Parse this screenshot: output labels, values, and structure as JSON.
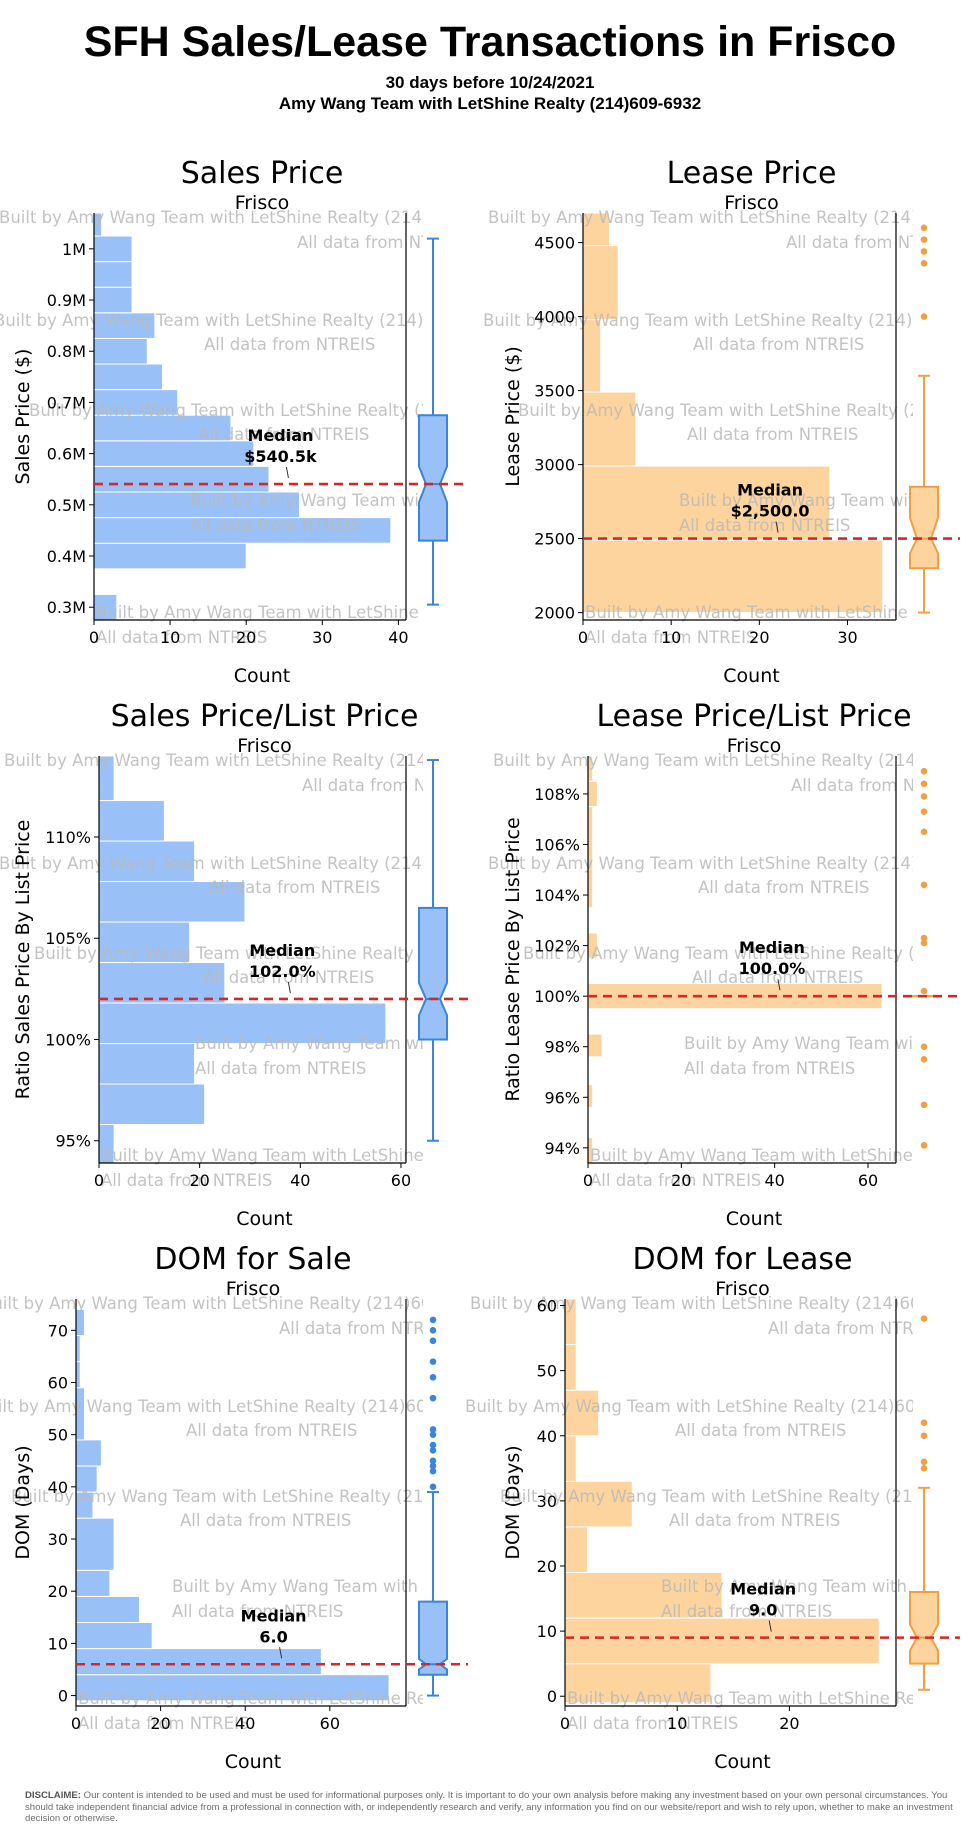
{
  "header": {
    "title": "SFH Sales/Lease Transactions in Frisco",
    "subtitle_date": "30 days before 10/24/2021",
    "subtitle_team": "Amy Wang Team with LetShine Realty (214)609-6932"
  },
  "watermark": {
    "line1": "Built by Amy Wang Team with LetShine Realty (214)609-6932",
    "line2": "All data from NTREIS"
  },
  "colors": {
    "sale_fill": "#99c1f7",
    "sale_line": "#3a84d9",
    "lease_fill": "#fdd49e",
    "lease_line": "#f0a040",
    "median_line": "#d62728"
  },
  "disclaimer": {
    "label": "DISCLAIME:",
    "text": "Our content is intended to be used and must be used for informational purposes only. It is important to do your own analysis before making any investment based on your own personal circumstances. You should take independent financial advice from a professional in connection with, or independently research and verify, any information you find on our website/report and wish to rely upon, whether to make an investment decision or otherwise."
  },
  "chart_data": [
    {
      "type": "bar",
      "orientation": "horizontal-histogram",
      "title": "Sales Price",
      "subtitle": "Frisco",
      "xlabel": "Count",
      "ylabel": "Sales Price ($)",
      "xlim": [
        0,
        41
      ],
      "ylim": [
        275000,
        1070000
      ],
      "xticks": [
        0,
        10,
        20,
        30,
        40
      ],
      "xtick_labels": [
        "0",
        "10",
        "20",
        "30",
        "40"
      ],
      "yticks": [
        300000,
        400000,
        500000,
        600000,
        700000,
        800000,
        900000,
        1000000
      ],
      "ytick_labels": [
        "0.3M",
        "0.4M",
        "0.5M",
        "0.6M",
        "0.7M",
        "0.8M",
        "0.9M",
        "1M"
      ],
      "bins": [
        {
          "lo": 275000,
          "hi": 325000,
          "count": 3
        },
        {
          "lo": 325000,
          "hi": 375000,
          "count": 0
        },
        {
          "lo": 375000,
          "hi": 425000,
          "count": 20
        },
        {
          "lo": 425000,
          "hi": 475000,
          "count": 39
        },
        {
          "lo": 475000,
          "hi": 525000,
          "count": 27
        },
        {
          "lo": 525000,
          "hi": 575000,
          "count": 23
        },
        {
          "lo": 575000,
          "hi": 625000,
          "count": 21
        },
        {
          "lo": 625000,
          "hi": 675000,
          "count": 18
        },
        {
          "lo": 675000,
          "hi": 725000,
          "count": 11
        },
        {
          "lo": 725000,
          "hi": 775000,
          "count": 9
        },
        {
          "lo": 775000,
          "hi": 825000,
          "count": 7
        },
        {
          "lo": 825000,
          "hi": 875000,
          "count": 8
        },
        {
          "lo": 875000,
          "hi": 925000,
          "count": 5
        },
        {
          "lo": 925000,
          "hi": 975000,
          "count": 5
        },
        {
          "lo": 975000,
          "hi": 1025000,
          "count": 5
        },
        {
          "lo": 1025000,
          "hi": 1070000,
          "count": 1
        }
      ],
      "median": 540500,
      "median_label": "Median",
      "median_text": "$540.5k",
      "box": {
        "wl": 305000,
        "q1": 430000,
        "med": 540500,
        "q3": 675000,
        "wh": 1020000,
        "notch_lo": 505000,
        "notch_hi": 575000
      },
      "outliers": [],
      "palette": "sale"
    },
    {
      "type": "bar",
      "orientation": "horizontal-histogram",
      "title": "Lease Price",
      "subtitle": "Frisco",
      "xlabel": "Count",
      "ylabel": "Lease Price ($)",
      "xlim": [
        0,
        35.5
      ],
      "ylim": [
        1950,
        4700
      ],
      "xticks": [
        0,
        10,
        20,
        30
      ],
      "xtick_labels": [
        "0",
        "10",
        "20",
        "30"
      ],
      "yticks": [
        2000,
        2500,
        3000,
        3500,
        4000,
        4500
      ],
      "ytick_labels": [
        "2000",
        "2500",
        "3000",
        "3500",
        "4000",
        "4500"
      ],
      "bins": [
        {
          "lo": 2000,
          "hi": 2490,
          "count": 34
        },
        {
          "lo": 2490,
          "hi": 2990,
          "count": 28
        },
        {
          "lo": 2990,
          "hi": 3490,
          "count": 6
        },
        {
          "lo": 3490,
          "hi": 3980,
          "count": 2
        },
        {
          "lo": 3980,
          "hi": 4480,
          "count": 4
        },
        {
          "lo": 4480,
          "hi": 4700,
          "count": 3
        }
      ],
      "median": 2500,
      "median_label": "Median",
      "median_text": "$2,500.0",
      "box": {
        "wl": 2000,
        "q1": 2300,
        "med": 2500,
        "q3": 2850,
        "wh": 3600,
        "notch_lo": 2400,
        "notch_hi": 2640
      },
      "outliers": [
        4000,
        4360,
        4440,
        4520,
        4600
      ],
      "palette": "lease"
    },
    {
      "type": "bar",
      "orientation": "horizontal-histogram",
      "title": "Sales Price/List Price",
      "subtitle": "Frisco",
      "xlabel": "Count",
      "ylabel": "Ratio Sales Price By List Price",
      "xlim": [
        0,
        61
      ],
      "ylim": [
        93.9,
        114.0
      ],
      "xticks": [
        0,
        20,
        40,
        60
      ],
      "xtick_labels": [
        "0",
        "20",
        "40",
        "60"
      ],
      "yticks": [
        95,
        100,
        105,
        110
      ],
      "ytick_labels": [
        "95%",
        "100%",
        "105%",
        "110%"
      ],
      "bins": [
        {
          "lo": 93.9,
          "hi": 95.8,
          "count": 3
        },
        {
          "lo": 95.8,
          "hi": 97.8,
          "count": 21
        },
        {
          "lo": 97.8,
          "hi": 99.8,
          "count": 19
        },
        {
          "lo": 99.8,
          "hi": 101.8,
          "count": 57
        },
        {
          "lo": 101.8,
          "hi": 103.8,
          "count": 25
        },
        {
          "lo": 103.8,
          "hi": 105.8,
          "count": 18
        },
        {
          "lo": 105.8,
          "hi": 107.8,
          "count": 29
        },
        {
          "lo": 107.8,
          "hi": 109.8,
          "count": 19
        },
        {
          "lo": 109.8,
          "hi": 111.8,
          "count": 13
        },
        {
          "lo": 111.8,
          "hi": 114.0,
          "count": 3
        }
      ],
      "median": 102.0,
      "median_label": "Median",
      "median_text": "102.0%",
      "box": {
        "wl": 95.0,
        "q1": 100.0,
        "med": 102.0,
        "q3": 106.5,
        "wh": 113.8,
        "notch_lo": 101.2,
        "notch_hi": 102.8
      },
      "outliers": [],
      "palette": "sale"
    },
    {
      "type": "bar",
      "orientation": "horizontal-histogram",
      "title": "Lease Price/List Price",
      "subtitle": "Frisco",
      "xlabel": "Count",
      "ylabel": "Ratio Lease Price By List Price",
      "xlim": [
        0,
        66
      ],
      "ylim": [
        93.4,
        109.5
      ],
      "xticks": [
        0,
        20,
        40,
        60
      ],
      "xtick_labels": [
        "0",
        "20",
        "40",
        "60"
      ],
      "yticks": [
        94,
        96,
        98,
        100,
        102,
        104,
        106,
        108
      ],
      "ytick_labels": [
        "94%",
        "96%",
        "98%",
        "100%",
        "102%",
        "104%",
        "106%",
        "108%"
      ],
      "bins": [
        {
          "lo": 93.4,
          "hi": 94.4,
          "count": 1
        },
        {
          "lo": 95.6,
          "hi": 96.5,
          "count": 1
        },
        {
          "lo": 97.6,
          "hi": 98.5,
          "count": 3
        },
        {
          "lo": 99.5,
          "hi": 100.5,
          "count": 63
        },
        {
          "lo": 101.5,
          "hi": 102.5,
          "count": 2
        },
        {
          "lo": 103.5,
          "hi": 107.5,
          "count": 1
        },
        {
          "lo": 107.5,
          "hi": 108.5,
          "count": 2
        },
        {
          "lo": 108.5,
          "hi": 109.5,
          "count": 1
        }
      ],
      "median": 100.0,
      "median_label": "Median",
      "median_text": "100.0%",
      "box": {
        "wl": 100.0,
        "q1": 100.0,
        "med": 100.0,
        "q3": 100.0,
        "wh": 100.0,
        "notch_lo": 100.0,
        "notch_hi": 100.0
      },
      "outliers": [
        94.1,
        95.7,
        97.5,
        98.0,
        100.2,
        102.1,
        102.3,
        104.4,
        106.5,
        107.3,
        107.9,
        108.4,
        108.9
      ],
      "palette": "lease"
    },
    {
      "type": "bar",
      "orientation": "horizontal-histogram",
      "title": "DOM for Sale",
      "subtitle": "Frisco",
      "xlabel": "Count",
      "ylabel": "DOM (Days)",
      "xlim": [
        0,
        78
      ],
      "ylim": [
        -2,
        76
      ],
      "xticks": [
        0,
        20,
        40,
        60
      ],
      "xtick_labels": [
        "0",
        "20",
        "40",
        "60"
      ],
      "yticks": [
        0,
        10,
        20,
        30,
        40,
        50,
        60,
        70
      ],
      "ytick_labels": [
        "0",
        "10",
        "20",
        "30",
        "40",
        "50",
        "60",
        "70"
      ],
      "bins": [
        {
          "lo": -1,
          "hi": 4,
          "count": 74
        },
        {
          "lo": 4,
          "hi": 9,
          "count": 58
        },
        {
          "lo": 9,
          "hi": 14,
          "count": 18
        },
        {
          "lo": 14,
          "hi": 19,
          "count": 15
        },
        {
          "lo": 19,
          "hi": 24,
          "count": 8
        },
        {
          "lo": 24,
          "hi": 34,
          "count": 9
        },
        {
          "lo": 34,
          "hi": 39,
          "count": 4
        },
        {
          "lo": 39,
          "hi": 44,
          "count": 5
        },
        {
          "lo": 44,
          "hi": 49,
          "count": 6
        },
        {
          "lo": 49,
          "hi": 59,
          "count": 2
        },
        {
          "lo": 59,
          "hi": 64,
          "count": 1
        },
        {
          "lo": 64,
          "hi": 69,
          "count": 1
        },
        {
          "lo": 69,
          "hi": 74,
          "count": 2
        }
      ],
      "median": 6.0,
      "median_label": "Median",
      "median_text": "6.0",
      "box": {
        "wl": 0,
        "q1": 4,
        "med": 6.0,
        "q3": 18,
        "wh": 39,
        "notch_lo": 5,
        "notch_hi": 7
      },
      "outliers": [
        40,
        43,
        44,
        45,
        47,
        48,
        50,
        51,
        57,
        61,
        64,
        68,
        70,
        72
      ],
      "palette": "sale"
    },
    {
      "type": "bar",
      "orientation": "horizontal-histogram",
      "title": "DOM for Lease",
      "subtitle": "Frisco",
      "xlabel": "Count",
      "ylabel": "DOM (Days)",
      "xlim": [
        0,
        29.5
      ],
      "ylim": [
        -1.5,
        61
      ],
      "xticks": [
        0,
        10,
        20
      ],
      "xtick_labels": [
        "0",
        "10",
        "20"
      ],
      "yticks": [
        0,
        10,
        20,
        30,
        40,
        50,
        60
      ],
      "ytick_labels": [
        "0",
        "10",
        "20",
        "30",
        "40",
        "50",
        "60"
      ],
      "bins": [
        {
          "lo": -1,
          "hi": 5,
          "count": 13
        },
        {
          "lo": 5,
          "hi": 12,
          "count": 28
        },
        {
          "lo": 12,
          "hi": 19,
          "count": 14
        },
        {
          "lo": 19,
          "hi": 26,
          "count": 2
        },
        {
          "lo": 26,
          "hi": 33,
          "count": 6
        },
        {
          "lo": 33,
          "hi": 40,
          "count": 1
        },
        {
          "lo": 40,
          "hi": 47,
          "count": 3
        },
        {
          "lo": 47,
          "hi": 54,
          "count": 1
        },
        {
          "lo": 54,
          "hi": 61,
          "count": 1
        }
      ],
      "median": 9.0,
      "median_label": "Median",
      "median_text": "9.0",
      "box": {
        "wl": 1,
        "q1": 5,
        "med": 9.0,
        "q3": 16,
        "wh": 32,
        "notch_lo": 7,
        "notch_hi": 11
      },
      "outliers": [
        35,
        36,
        40,
        42,
        58
      ],
      "palette": "lease"
    }
  ]
}
